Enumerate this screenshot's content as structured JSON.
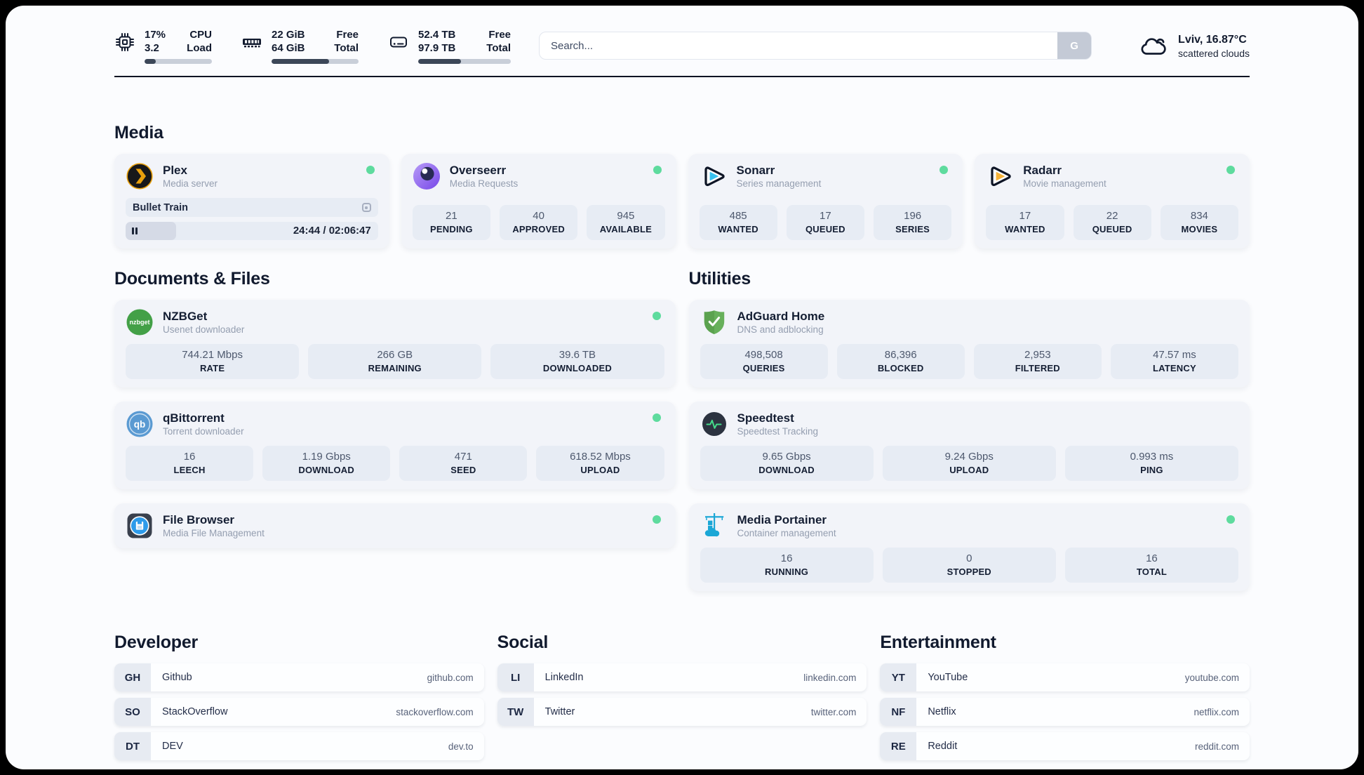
{
  "header": {
    "stats": [
      {
        "icon": "cpu-icon",
        "col1": [
          "17%",
          "3.2"
        ],
        "col2": [
          "CPU",
          "Load"
        ],
        "progress_pct": 17
      },
      {
        "icon": "ram-icon",
        "col1": [
          "22 GiB",
          "64 GiB"
        ],
        "col2": [
          "Free",
          "Total"
        ],
        "progress_pct": 66
      },
      {
        "icon": "disk-icon",
        "col1": [
          "52.4 TB",
          "97.9 TB"
        ],
        "col2": [
          "Free",
          "Total"
        ],
        "progress_pct": 46
      }
    ],
    "search": {
      "placeholder": "Search...",
      "button_label": "G"
    },
    "weather": {
      "icon": "cloud-icon",
      "location": "Lviv, 16.87°C",
      "condition": "scattered clouds"
    }
  },
  "sections": {
    "media": {
      "title": "Media",
      "apps": [
        {
          "id": "plex",
          "icon": "plex-icon",
          "name": "Plex",
          "description": "Media server",
          "online": true,
          "now_playing": {
            "title": "Bullet Train",
            "time": "24:44 / 02:06:47",
            "progress_pct": 20
          }
        },
        {
          "id": "overseerr",
          "icon": "overseerr-icon",
          "name": "Overseerr",
          "description": "Media Requests",
          "online": true,
          "stats": [
            {
              "value": "21",
              "label": "PENDING"
            },
            {
              "value": "40",
              "label": "APPROVED"
            },
            {
              "value": "945",
              "label": "AVAILABLE"
            }
          ]
        },
        {
          "id": "sonarr",
          "icon": "sonarr-icon",
          "name": "Sonarr",
          "description": "Series management",
          "online": true,
          "stats": [
            {
              "value": "485",
              "label": "WANTED"
            },
            {
              "value": "17",
              "label": "QUEUED"
            },
            {
              "value": "196",
              "label": "SERIES"
            }
          ]
        },
        {
          "id": "radarr",
          "icon": "radarr-icon",
          "name": "Radarr",
          "description": "Movie management",
          "online": true,
          "stats": [
            {
              "value": "17",
              "label": "WANTED"
            },
            {
              "value": "22",
              "label": "QUEUED"
            },
            {
              "value": "834",
              "label": "MOVIES"
            }
          ]
        }
      ]
    },
    "documents": {
      "title": "Documents & Files",
      "apps": [
        {
          "id": "nzbget",
          "icon": "nzbget-icon",
          "name": "NZBGet",
          "description": "Usenet downloader",
          "online": true,
          "stats": [
            {
              "value": "744.21 Mbps",
              "label": "RATE"
            },
            {
              "value": "266 GB",
              "label": "REMAINING"
            },
            {
              "value": "39.6 TB",
              "label": "DOWNLOADED"
            }
          ]
        },
        {
          "id": "qbittorrent",
          "icon": "qbittorrent-icon",
          "name": "qBittorrent",
          "description": "Torrent downloader",
          "online": true,
          "stats": [
            {
              "value": "16",
              "label": "LEECH"
            },
            {
              "value": "1.19 Gbps",
              "label": "DOWNLOAD"
            },
            {
              "value": "471",
              "label": "SEED"
            },
            {
              "value": "618.52 Mbps",
              "label": "UPLOAD"
            }
          ]
        },
        {
          "id": "filebrowser",
          "icon": "filebrowser-icon",
          "name": "File Browser",
          "description": "Media File Management",
          "online": true,
          "stats": []
        }
      ]
    },
    "utilities": {
      "title": "Utilities",
      "apps": [
        {
          "id": "adguard",
          "icon": "adguard-icon",
          "name": "AdGuard Home",
          "description": "DNS and adblocking",
          "online": false,
          "stats": [
            {
              "value": "498,508",
              "label": "QUERIES"
            },
            {
              "value": "86,396",
              "label": "BLOCKED"
            },
            {
              "value": "2,953",
              "label": "FILTERED"
            },
            {
              "value": "47.57 ms",
              "label": "LATENCY"
            }
          ]
        },
        {
          "id": "speedtest",
          "icon": "speedtest-icon",
          "name": "Speedtest",
          "description": "Speedtest Tracking",
          "online": false,
          "stats": [
            {
              "value": "9.65 Gbps",
              "label": "DOWNLOAD"
            },
            {
              "value": "9.24 Gbps",
              "label": "UPLOAD"
            },
            {
              "value": "0.993 ms",
              "label": "PING"
            }
          ]
        },
        {
          "id": "portainer",
          "icon": "portainer-icon",
          "name": "Media Portainer",
          "description": "Container management",
          "online": true,
          "stats": [
            {
              "value": "16",
              "label": "RUNNING"
            },
            {
              "value": "0",
              "label": "STOPPED"
            },
            {
              "value": "16",
              "label": "TOTAL"
            }
          ]
        }
      ]
    },
    "bookmarks": [
      {
        "title": "Developer",
        "links": [
          {
            "abbr": "GH",
            "label": "Github",
            "url": "github.com"
          },
          {
            "abbr": "SO",
            "label": "StackOverflow",
            "url": "stackoverflow.com"
          },
          {
            "abbr": "DT",
            "label": "DEV",
            "url": "dev.to"
          }
        ]
      },
      {
        "title": "Social",
        "links": [
          {
            "abbr": "LI",
            "label": "LinkedIn",
            "url": "linkedin.com"
          },
          {
            "abbr": "TW",
            "label": "Twitter",
            "url": "twitter.com"
          }
        ]
      },
      {
        "title": "Entertainment",
        "links": [
          {
            "abbr": "YT",
            "label": "YouTube",
            "url": "youtube.com"
          },
          {
            "abbr": "NF",
            "label": "Netflix",
            "url": "netflix.com"
          },
          {
            "abbr": "RE",
            "label": "Reddit",
            "url": "reddit.com"
          }
        ]
      }
    ]
  },
  "colors": {
    "page_bg": "#fbfcfe",
    "card_bg": "#f2f4f9",
    "chip_bg": "#e7ecf4",
    "text_dark": "#111a2e",
    "text_muted": "#949eb0",
    "status_online": "#5edb9e",
    "progress_fill": "#3c4758",
    "divider": "#0c1322"
  }
}
